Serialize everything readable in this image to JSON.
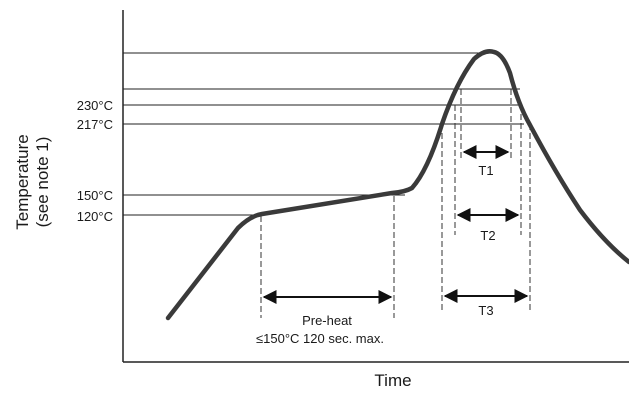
{
  "diagram": {
    "x_axis_label": "Time",
    "y_axis_label_line1": "Temperature",
    "y_axis_label_line2": "(see note 1)",
    "temperature_ticks": [
      "230°C",
      "217°C",
      "150°C",
      "120°C"
    ],
    "intervals": [
      "T1",
      "T2",
      "T3"
    ],
    "preheat_label": "Pre-heat",
    "preheat_note": "≤150°C  120 sec. max."
  },
  "colors": {
    "profile_line": "#3a3a3a",
    "guide_lines": "#222222",
    "background": "#ffffff"
  }
}
